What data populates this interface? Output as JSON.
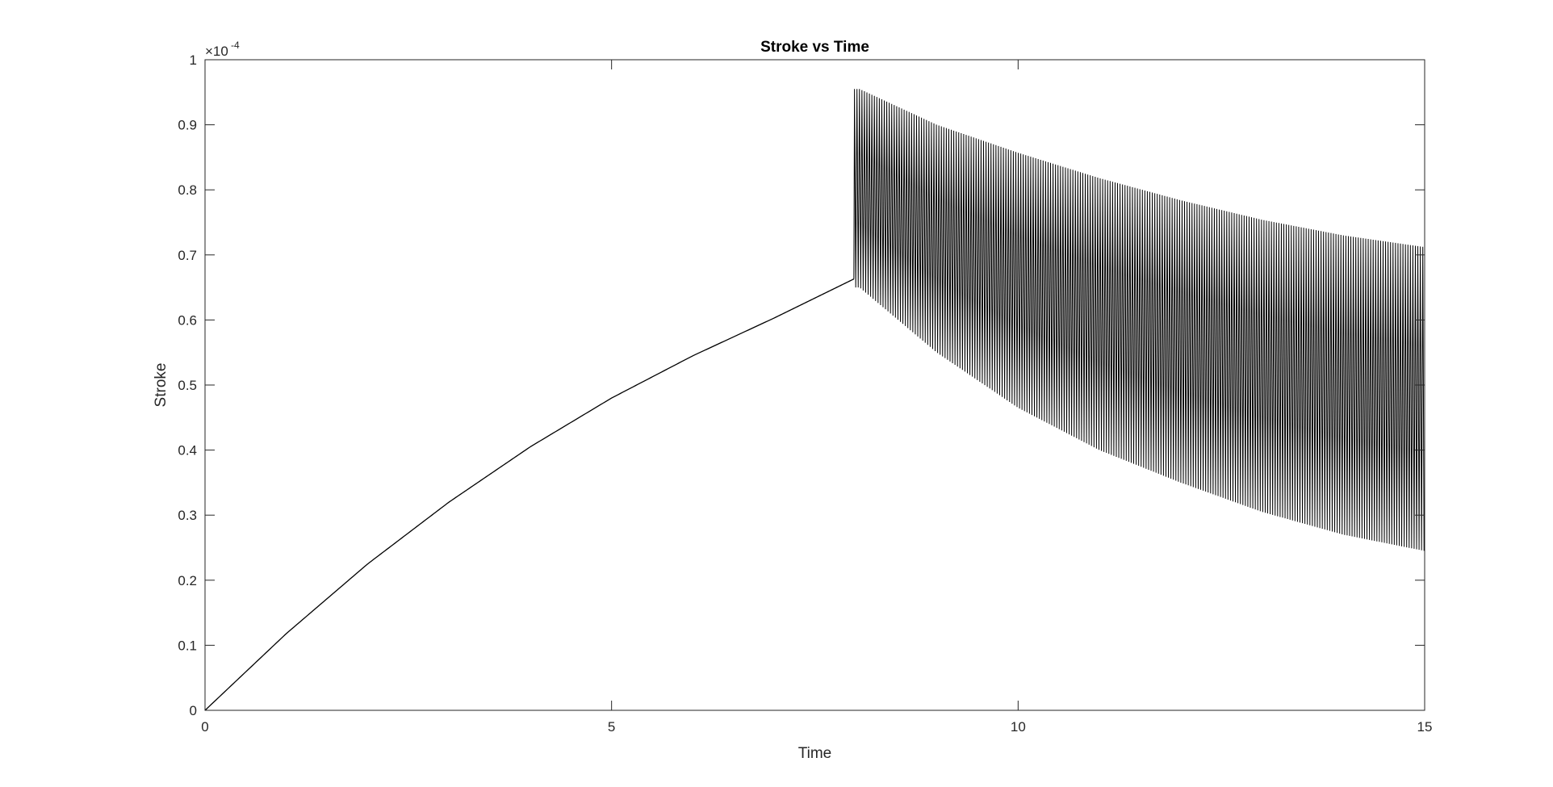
{
  "chart_data": {
    "type": "line",
    "title": "Stroke vs Time",
    "xlabel": "Time",
    "ylabel": "Stroke",
    "xlim": [
      0,
      15
    ],
    "ylim": [
      0,
      1
    ],
    "y_exponent_label": "×10",
    "y_exponent_power": "-4",
    "x_ticks": [
      "0",
      "5",
      "10",
      "15"
    ],
    "x_tick_values": [
      0,
      5,
      10,
      15
    ],
    "y_ticks": [
      "0",
      "0.1",
      "0.2",
      "0.3",
      "0.4",
      "0.5",
      "0.6",
      "0.7",
      "0.8",
      "0.9",
      "1"
    ],
    "y_tick_values": [
      0,
      0.1,
      0.2,
      0.3,
      0.4,
      0.5,
      0.6,
      0.7,
      0.8,
      0.9,
      1
    ],
    "grid": false,
    "legend": "none",
    "series": [
      {
        "color": "#000000",
        "ramp": {
          "x": [
            0,
            1,
            2,
            3,
            4,
            5,
            6,
            7,
            7.98
          ],
          "y": [
            0,
            0.118,
            0.225,
            0.32,
            0.405,
            0.48,
            0.545,
            0.603,
            0.663
          ]
        },
        "oscillation": {
          "x_start": 7.98,
          "x_end": 15,
          "cycles": 230,
          "upper_envelope": {
            "x": [
              8.05,
              9,
              10,
              11,
              12,
              13,
              14,
              15
            ],
            "y": [
              0.955,
              0.9,
              0.857,
              0.818,
              0.784,
              0.754,
              0.73,
              0.712
            ]
          },
          "lower_envelope": {
            "x": [
              8.05,
              9,
              10,
              11,
              12,
              13,
              14,
              15
            ],
            "y": [
              0.65,
              0.55,
              0.465,
              0.4,
              0.35,
              0.305,
              0.27,
              0.245
            ]
          }
        }
      }
    ]
  }
}
